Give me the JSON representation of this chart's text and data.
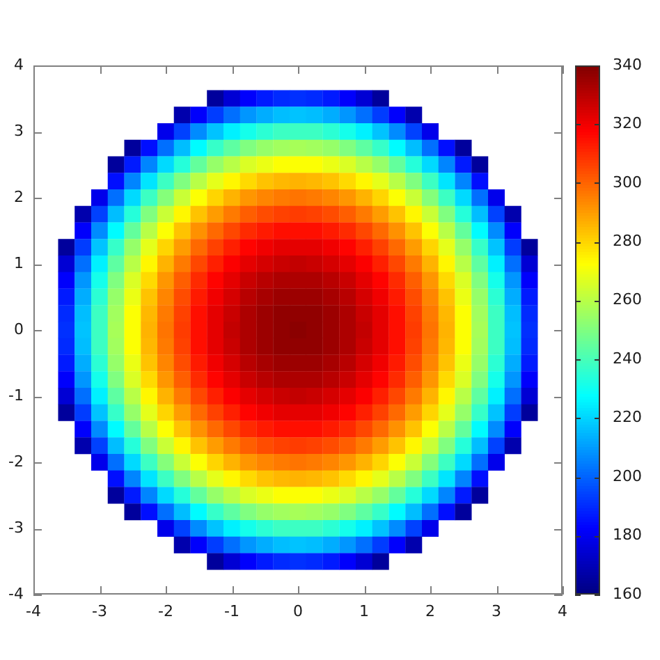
{
  "chart_data": {
    "type": "scatter",
    "marker": "square",
    "xlim": [
      -4,
      4
    ],
    "ylim": [
      -4,
      4
    ],
    "xticks": [
      -4,
      -3,
      -2,
      -1,
      0,
      1,
      2,
      3,
      4
    ],
    "yticks": [
      -4,
      -3,
      -2,
      -1,
      0,
      1,
      2,
      3,
      4
    ],
    "clim": [
      160,
      340
    ],
    "cticks": [
      160,
      180,
      200,
      220,
      240,
      260,
      280,
      300,
      320,
      340
    ],
    "x": [
      -1.25,
      -1,
      -0.75,
      -0.5,
      -0.25,
      0,
      0.25,
      0.5,
      0.75,
      1,
      1.25,
      -1.75,
      -1.5,
      -1.25,
      -1,
      -0.75,
      -0.5,
      -0.25,
      0,
      0.25,
      0.5,
      0.75,
      1,
      1.25,
      1.5,
      1.75,
      -2,
      -1.75,
      -1.5,
      -1.25,
      -1,
      -0.75,
      -0.5,
      -0.25,
      0,
      0.25,
      0.5,
      0.75,
      1,
      1.25,
      1.5,
      1.75,
      2,
      -2.5,
      -2.25,
      -2,
      -1.75,
      -1.5,
      -1.25,
      -1,
      -0.75,
      -0.5,
      -0.25,
      0,
      0.25,
      0.5,
      0.75,
      1,
      1.25,
      1.5,
      1.75,
      2,
      2.25,
      2.5,
      -2.75,
      -2.5,
      -2.25,
      -2,
      -1.75,
      -1.5,
      -1.25,
      -1,
      -0.75,
      -0.5,
      -0.25,
      0,
      0.25,
      0.5,
      0.75,
      1,
      1.25,
      1.5,
      1.75,
      2,
      2.25,
      2.5,
      2.75,
      -2.75,
      -2.5,
      -2.25,
      -2,
      -1.75,
      -1.5,
      -1.25,
      -1,
      -0.75,
      -0.5,
      -0.25,
      0,
      0.25,
      0.5,
      0.75,
      1,
      1.25,
      1.5,
      1.75,
      2,
      2.25,
      2.5,
      2.75,
      -3,
      -2.75,
      -2.5,
      -2.25,
      -2,
      -1.75,
      -1.5,
      -1.25,
      -1,
      -0.75,
      -0.5,
      -0.25,
      0,
      0.25,
      0.5,
      0.75,
      1,
      1.25,
      1.5,
      1.75,
      2,
      2.25,
      2.5,
      2.75,
      3,
      -3.25,
      -3,
      -2.75,
      -2.5,
      -2.25,
      -2,
      -1.75,
      -1.5,
      -1.25,
      -1,
      -0.75,
      -0.5,
      -0.25,
      0,
      0.25,
      0.5,
      0.75,
      1,
      1.25,
      1.5,
      1.75,
      2,
      2.25,
      2.5,
      2.75,
      3,
      3.25,
      -3.25,
      -3,
      -2.75,
      -2.5,
      -2.25,
      -2,
      -1.75,
      -1.5,
      -1.25,
      -1,
      -0.75,
      -0.5,
      -0.25,
      0,
      0.25,
      0.5,
      0.75,
      1,
      1.25,
      1.5,
      1.75,
      2,
      2.25,
      2.5,
      2.75,
      3,
      3.25,
      -3.5,
      -3.25,
      -3,
      -2.75,
      -2.5,
      -2.25,
      -2,
      -1.75,
      -1.5,
      -1.25,
      -1,
      -0.75,
      -0.5,
      -0.25,
      0,
      0.25,
      0.5,
      0.75,
      1,
      1.25,
      1.5,
      1.75,
      2,
      2.25,
      2.5,
      2.75,
      3,
      3.25,
      3.5,
      -3.5,
      -3.25,
      -3,
      -2.75,
      -2.5,
      -2.25,
      -2,
      -1.75,
      -1.5,
      -1.25,
      -1,
      -0.75,
      -0.5,
      -0.25,
      0,
      0.25,
      0.5,
      0.75,
      1,
      1.25,
      1.5,
      1.75,
      2,
      2.25,
      2.5,
      2.75,
      3,
      3.25,
      3.5,
      -3.5,
      -3.25,
      -3,
      -2.75,
      -2.5,
      -2.25,
      -2,
      -1.75,
      -1.5,
      -1.25,
      -1,
      -0.75,
      -0.5,
      -0.25,
      0,
      0.25,
      0.5,
      0.75,
      1,
      1.25,
      1.5,
      1.75,
      2,
      2.25,
      2.5,
      2.75,
      3,
      3.25,
      3.5,
      -3.5,
      -3.25,
      -3,
      -2.75,
      -2.5,
      -2.25,
      -2,
      -1.75,
      -1.5,
      -1.25,
      -1,
      -0.75,
      -0.5,
      -0.25,
      0,
      0.25,
      0.5,
      0.75,
      1,
      1.25,
      1.5,
      1.75,
      2,
      2.25,
      2.5,
      2.75,
      3,
      3.25,
      3.5,
      -3.5,
      -3.25,
      -3,
      -2.75,
      -2.5,
      -2.25,
      -2,
      -1.75,
      -1.5,
      -1.25,
      -1,
      -0.75,
      -0.5,
      -0.25,
      0,
      0.25,
      0.5,
      0.75,
      1,
      1.25,
      1.5,
      1.75,
      2,
      2.25,
      2.5,
      2.75,
      3,
      3.25,
      3.5,
      -3.5,
      -3.25,
      -3,
      -2.75,
      -2.5,
      -2.25,
      -2,
      -1.75,
      -1.5,
      -1.25,
      -1,
      -0.75,
      -0.5,
      -0.25,
      0,
      0.25,
      0.5,
      0.75,
      1,
      1.25,
      1.5,
      1.75,
      2,
      2.25,
      2.5,
      2.75,
      3,
      3.25,
      3.5,
      -3.5,
      -3.25,
      -3,
      -2.75,
      -2.5,
      -2.25,
      -2,
      -1.75,
      -1.5,
      -1.25,
      -1,
      -0.75,
      -0.5,
      -0.25,
      0,
      0.25,
      0.5,
      0.75,
      1,
      1.25,
      1.5,
      1.75,
      2,
      2.25,
      2.5,
      2.75,
      3,
      3.25,
      3.5,
      -3.5,
      -3.25,
      -3,
      -2.75,
      -2.5,
      -2.25,
      -2,
      -1.75,
      -1.5,
      -1.25,
      -1,
      -0.75,
      -0.5,
      -0.25,
      0,
      0.25,
      0.5,
      0.75,
      1,
      1.25,
      1.5,
      1.75,
      2,
      2.25,
      2.5,
      2.75,
      3,
      3.25,
      3.5,
      -3.5,
      -3.25,
      -3,
      -2.75,
      -2.5,
      -2.25,
      -2,
      -1.75,
      -1.5,
      -1.25,
      -1,
      -0.75,
      -0.5,
      -0.25,
      0,
      0.25,
      0.5,
      0.75,
      1,
      1.25,
      1.5,
      1.75,
      2,
      2.25,
      2.5,
      2.75,
      3,
      3.25,
      3.5,
      -3.5,
      -3.25,
      -3,
      -2.75,
      -2.5,
      -2.25,
      -2,
      -1.75,
      -1.5,
      -1.25,
      -1,
      -0.75,
      -0.5,
      -0.25,
      0,
      0.25,
      0.5,
      0.75,
      1,
      1.25,
      1.5,
      1.75,
      2,
      2.25,
      2.5,
      2.75,
      3,
      3.25,
      3.5,
      -3.5,
      -3.25,
      -3,
      -2.75,
      -2.5,
      -2.25,
      -2,
      -1.75,
      -1.5,
      -1.25,
      -1,
      -0.75,
      -0.5,
      -0.25,
      0,
      0.25,
      0.5,
      0.75,
      1,
      1.25,
      1.5,
      1.75,
      2,
      2.25,
      2.5,
      2.75,
      3,
      3.25,
      3.5,
      -3.25,
      -3,
      -2.75,
      -2.5,
      -2.25,
      -2,
      -1.75,
      -1.5,
      -1.25,
      -1,
      -0.75,
      -0.5,
      -0.25,
      0,
      0.25,
      0.5,
      0.75,
      1,
      1.25,
      1.5,
      1.75,
      2,
      2.25,
      2.5,
      2.75,
      3,
      3.25,
      -3.25,
      -3,
      -2.75,
      -2.5,
      -2.25,
      -2,
      -1.75,
      -1.5,
      -1.25,
      -1,
      -0.75,
      -0.5,
      -0.25,
      0,
      0.25,
      0.5,
      0.75,
      1,
      1.25,
      1.5,
      1.75,
      2,
      2.25,
      2.5,
      2.75,
      3,
      3.25,
      -3,
      -2.75,
      -2.5,
      -2.25,
      -2,
      -1.75,
      -1.5,
      -1.25,
      -1,
      -0.75,
      -0.5,
      -0.25,
      0,
      0.25,
      0.5,
      0.75,
      1,
      1.25,
      1.5,
      1.75,
      2,
      2.25,
      2.5,
      2.75,
      3,
      -2.75,
      -2.5,
      -2.25,
      -2,
      -1.75,
      -1.5,
      -1.25,
      -1,
      -0.75,
      -0.5,
      -0.25,
      0,
      0.25,
      0.5,
      0.75,
      1,
      1.25,
      1.5,
      1.75,
      2,
      2.25,
      2.5,
      2.75,
      -2.75,
      -2.5,
      -2.25,
      -2,
      -1.75,
      -1.5,
      -1.25,
      -1,
      -0.75,
      -0.5,
      -0.25,
      0,
      0.25,
      0.5,
      0.75,
      1,
      1.25,
      1.5,
      1.75,
      2,
      2.25,
      2.5,
      2.75,
      -2.5,
      -2.25,
      -2,
      -1.75,
      -1.5,
      -1.25,
      -1,
      -0.75,
      -0.5,
      -0.25,
      0,
      0.25,
      0.5,
      0.75,
      1,
      1.25,
      1.5,
      1.75,
      2,
      2.25,
      2.5,
      -2,
      -1.75,
      -1.5,
      -1.25,
      -1,
      -0.75,
      -0.5,
      -0.25,
      0,
      0.25,
      0.5,
      0.75,
      1,
      1.25,
      1.5,
      1.75,
      2,
      -1.75,
      -1.5,
      -1.25,
      -1,
      -0.75,
      -0.5,
      -0.25,
      0,
      0.25,
      0.5,
      0.75,
      1,
      1.25,
      1.5,
      1.75,
      -1.25,
      -1,
      -0.75,
      -0.5,
      -0.25,
      0,
      0.25,
      0.5,
      0.75,
      1,
      1.25
    ],
    "values": [
      3.5,
      3.5,
      3.5,
      3.5,
      3.5,
      3.5,
      3.5,
      3.5,
      3.5,
      3.5,
      3.5,
      3.25,
      3.25,
      3.25,
      3.25,
      3.25,
      3.25,
      3.25,
      3.25,
      3.25,
      3.25,
      3.25,
      3.25,
      3.25,
      3.25,
      3.25,
      3,
      3,
      3,
      3,
      3,
      3,
      3,
      3,
      3,
      3,
      3,
      3,
      3,
      3,
      3,
      3,
      3,
      2.75,
      2.75,
      2.75,
      2.75,
      2.75,
      2.75,
      2.75,
      2.75,
      2.75,
      2.75,
      2.75,
      2.75,
      2.75,
      2.75,
      2.75,
      2.75,
      2.75,
      2.75,
      2.75,
      2.75,
      2.75,
      2.5,
      2.5,
      2.5,
      2.5,
      2.5,
      2.5,
      2.5,
      2.5,
      2.5,
      2.5,
      2.5,
      2.5,
      2.5,
      2.5,
      2.5,
      2.5,
      2.5,
      2.5,
      2.5,
      2.5,
      2.5,
      2.5,
      2.5,
      2.25,
      2.25,
      2.25,
      2.25,
      2.25,
      2.25,
      2.25,
      2.25,
      2.25,
      2.25,
      2.25,
      2.25,
      2.25,
      2.25,
      2.25,
      2.25,
      2.25,
      2.25,
      2.25,
      2.25,
      2.25,
      2.25,
      2.25,
      2,
      2,
      2,
      2,
      2,
      2,
      2,
      2,
      2,
      2,
      2,
      2,
      2,
      2,
      2,
      2,
      2,
      2,
      2,
      2,
      2,
      2,
      2,
      2,
      2,
      1.75,
      1.75,
      1.75,
      1.75,
      1.75,
      1.75,
      1.75,
      1.75,
      1.75,
      1.75,
      1.75,
      1.75,
      1.75,
      1.75,
      1.75,
      1.75,
      1.75,
      1.75,
      1.75,
      1.75,
      1.75,
      1.75,
      1.75,
      1.75,
      1.75,
      1.75,
      1.75,
      1.5,
      1.5,
      1.5,
      1.5,
      1.5,
      1.5,
      1.5,
      1.5,
      1.5,
      1.5,
      1.5,
      1.5,
      1.5,
      1.5,
      1.5,
      1.5,
      1.5,
      1.5,
      1.5,
      1.5,
      1.5,
      1.5,
      1.5,
      1.5,
      1.5,
      1.5,
      1.5,
      1.25,
      1.25,
      1.25,
      1.25,
      1.25,
      1.25,
      1.25,
      1.25,
      1.25,
      1.25,
      1.25,
      1.25,
      1.25,
      1.25,
      1.25,
      1.25,
      1.25,
      1.25,
      1.25,
      1.25,
      1.25,
      1.25,
      1.25,
      1.25,
      1.25,
      1.25,
      1.25,
      1.25,
      1.25,
      1,
      1,
      1,
      1,
      1,
      1,
      1,
      1,
      1,
      1,
      1,
      1,
      1,
      1,
      1,
      1,
      1,
      1,
      1,
      1,
      1,
      1,
      1,
      1,
      1,
      1,
      1,
      1,
      1,
      0.75,
      0.75,
      0.75,
      0.75,
      0.75,
      0.75,
      0.75,
      0.75,
      0.75,
      0.75,
      0.75,
      0.75,
      0.75,
      0.75,
      0.75,
      0.75,
      0.75,
      0.75,
      0.75,
      0.75,
      0.75,
      0.75,
      0.75,
      0.75,
      0.75,
      0.75,
      0.75,
      0.75,
      0.75,
      0.5,
      0.5,
      0.5,
      0.5,
      0.5,
      0.5,
      0.5,
      0.5,
      0.5,
      0.5,
      0.5,
      0.5,
      0.5,
      0.5,
      0.5,
      0.5,
      0.5,
      0.5,
      0.5,
      0.5,
      0.5,
      0.5,
      0.5,
      0.5,
      0.5,
      0.5,
      0.5,
      0.5,
      0.5,
      0.25,
      0.25,
      0.25,
      0.25,
      0.25,
      0.25,
      0.25,
      0.25,
      0.25,
      0.25,
      0.25,
      0.25,
      0.25,
      0.25,
      0.25,
      0.25,
      0.25,
      0.25,
      0.25,
      0.25,
      0.25,
      0.25,
      0.25,
      0.25,
      0.25,
      0.25,
      0.25,
      0.25,
      0.25,
      0,
      0,
      0,
      0,
      0,
      0,
      0,
      0,
      0,
      0,
      0,
      0,
      0,
      0,
      0,
      0,
      0,
      0,
      0,
      0,
      0,
      0,
      0,
      0,
      0,
      0,
      0,
      0,
      0,
      -0.25,
      -0.25,
      -0.25,
      -0.25,
      -0.25,
      -0.25,
      -0.25,
      -0.25,
      -0.25,
      -0.25,
      -0.25,
      -0.25,
      -0.25,
      -0.25,
      -0.25,
      -0.25,
      -0.25,
      -0.25,
      -0.25,
      -0.25,
      -0.25,
      -0.25,
      -0.25,
      -0.25,
      -0.25,
      -0.25,
      -0.25,
      -0.25,
      -0.25,
      -0.5,
      -0.5,
      -0.5,
      -0.5,
      -0.5,
      -0.5,
      -0.5,
      -0.5,
      -0.5,
      -0.5,
      -0.5,
      -0.5,
      -0.5,
      -0.5,
      -0.5,
      -0.5,
      -0.5,
      -0.5,
      -0.5,
      -0.5,
      -0.5,
      -0.5,
      -0.5,
      -0.5,
      -0.5,
      -0.5,
      -0.5,
      -0.5,
      -0.5,
      -0.75,
      -0.75,
      -0.75,
      -0.75,
      -0.75,
      -0.75,
      -0.75,
      -0.75,
      -0.75,
      -0.75,
      -0.75,
      -0.75,
      -0.75,
      -0.75,
      -0.75,
      -0.75,
      -0.75,
      -0.75,
      -0.75,
      -0.75,
      -0.75,
      -0.75,
      -0.75,
      -0.75,
      -0.75,
      -0.75,
      -0.75,
      -0.75,
      -0.75,
      -1,
      -1,
      -1,
      -1,
      -1,
      -1,
      -1,
      -1,
      -1,
      -1,
      -1,
      -1,
      -1,
      -1,
      -1,
      -1,
      -1,
      -1,
      -1,
      -1,
      -1,
      -1,
      -1,
      -1,
      -1,
      -1,
      -1,
      -1,
      -1,
      -1.25,
      -1.25,
      -1.25,
      -1.25,
      -1.25,
      -1.25,
      -1.25,
      -1.25,
      -1.25,
      -1.25,
      -1.25,
      -1.25,
      -1.25,
      -1.25,
      -1.25,
      -1.25,
      -1.25,
      -1.25,
      -1.25,
      -1.25,
      -1.25,
      -1.25,
      -1.25,
      -1.25,
      -1.25,
      -1.25,
      -1.25,
      -1.25,
      -1.25,
      -1.5,
      -1.5,
      -1.5,
      -1.5,
      -1.5,
      -1.5,
      -1.5,
      -1.5,
      -1.5,
      -1.5,
      -1.5,
      -1.5,
      -1.5,
      -1.5,
      -1.5,
      -1.5,
      -1.5,
      -1.5,
      -1.5,
      -1.5,
      -1.5,
      -1.5,
      -1.5,
      -1.5,
      -1.5,
      -1.5,
      -1.5,
      -1.75,
      -1.75,
      -1.75,
      -1.75,
      -1.75,
      -1.75,
      -1.75,
      -1.75,
      -1.75,
      -1.75,
      -1.75,
      -1.75,
      -1.75,
      -1.75,
      -1.75,
      -1.75,
      -1.75,
      -1.75,
      -1.75,
      -1.75,
      -1.75,
      -1.75,
      -1.75,
      -1.75,
      -1.75,
      -1.75,
      -1.75,
      -2,
      -2,
      -2,
      -2,
      -2,
      -2,
      -2,
      -2,
      -2,
      -2,
      -2,
      -2,
      -2,
      -2,
      -2,
      -2,
      -2,
      -2,
      -2,
      -2,
      -2,
      -2,
      -2,
      -2,
      -2,
      -2.25,
      -2.25,
      -2.25,
      -2.25,
      -2.25,
      -2.25,
      -2.25,
      -2.25,
      -2.25,
      -2.25,
      -2.25,
      -2.25,
      -2.25,
      -2.25,
      -2.25,
      -2.25,
      -2.25,
      -2.25,
      -2.25,
      -2.25,
      -2.25,
      -2.25,
      -2.25,
      -2.5,
      -2.5,
      -2.5,
      -2.5,
      -2.5,
      -2.5,
      -2.5,
      -2.5,
      -2.5,
      -2.5,
      -2.5,
      -2.5,
      -2.5,
      -2.5,
      -2.5,
      -2.5,
      -2.5,
      -2.5,
      -2.5,
      -2.5,
      -2.5,
      -2.5,
      -2.5,
      -2.75,
      -2.75,
      -2.75,
      -2.75,
      -2.75,
      -2.75,
      -2.75,
      -2.75,
      -2.75,
      -2.75,
      -2.75,
      -2.75,
      -2.75,
      -2.75,
      -2.75,
      -2.75,
      -2.75,
      -2.75,
      -2.75,
      -2.75,
      -2.75,
      -3,
      -3,
      -3,
      -3,
      -3,
      -3,
      -3,
      -3,
      -3,
      -3,
      -3,
      -3,
      -3,
      -3,
      -3,
      -3,
      -3,
      -3.25,
      -3.25,
      -3.25,
      -3.25,
      -3.25,
      -3.25,
      -3.25,
      -3.25,
      -3.25,
      -3.25,
      -3.25,
      -3.25,
      -3.25,
      -3.25,
      -3.25,
      -3.5,
      -3.5,
      -3.5,
      -3.5,
      -3.5,
      -3.5,
      -3.5,
      -3.5,
      -3.5,
      -3.5,
      -3.5
    ],
    "cvalues": [
      165,
      175,
      182,
      187,
      190,
      191,
      190,
      187,
      182,
      175,
      165,
      168,
      182,
      193,
      202,
      209,
      213,
      216,
      217,
      216,
      213,
      209,
      202,
      193,
      182,
      168,
      179,
      194,
      207,
      217,
      225,
      231,
      235,
      238,
      238,
      238,
      235,
      231,
      225,
      217,
      207,
      194,
      179,
      165,
      185,
      202,
      216,
      227,
      237,
      244,
      250,
      254,
      256,
      257,
      256,
      254,
      250,
      244,
      237,
      227,
      216,
      202,
      185,
      165,
      165,
      187,
      206,
      221,
      234,
      245,
      254,
      260,
      266,
      269,
      272,
      272,
      272,
      269,
      266,
      260,
      254,
      245,
      234,
      221,
      206,
      187,
      165,
      185,
      206,
      223,
      238,
      250,
      260,
      268,
      274,
      279,
      283,
      285,
      286,
      285,
      283,
      279,
      274,
      268,
      260,
      250,
      238,
      223,
      206,
      185,
      179,
      202,
      221,
      238,
      251,
      263,
      272,
      280,
      286,
      291,
      294,
      296,
      297,
      296,
      294,
      291,
      286,
      280,
      272,
      263,
      251,
      238,
      221,
      202,
      179,
      168,
      194,
      216,
      234,
      250,
      263,
      274,
      283,
      290,
      296,
      301,
      304,
      306,
      307,
      306,
      304,
      301,
      296,
      290,
      283,
      274,
      263,
      250,
      234,
      216,
      194,
      168,
      182,
      207,
      227,
      245,
      260,
      272,
      283,
      292,
      299,
      305,
      310,
      313,
      315,
      315,
      315,
      313,
      310,
      305,
      299,
      292,
      283,
      272,
      260,
      245,
      227,
      207,
      182,
      165,
      193,
      217,
      237,
      254,
      268,
      280,
      290,
      299,
      306,
      312,
      317,
      320,
      322,
      322,
      322,
      320,
      317,
      312,
      306,
      299,
      290,
      280,
      268,
      254,
      237,
      217,
      193,
      165,
      175,
      202,
      225,
      244,
      260,
      274,
      286,
      296,
      305,
      312,
      318,
      322,
      325,
      327,
      328,
      327,
      325,
      322,
      318,
      312,
      305,
      296,
      286,
      274,
      260,
      244,
      225,
      202,
      175,
      182,
      209,
      231,
      250,
      266,
      279,
      291,
      301,
      310,
      317,
      322,
      327,
      330,
      332,
      332,
      332,
      330,
      327,
      322,
      317,
      310,
      301,
      291,
      279,
      266,
      250,
      231,
      209,
      182,
      187,
      213,
      235,
      254,
      269,
      283,
      294,
      304,
      313,
      320,
      325,
      330,
      333,
      335,
      335,
      335,
      333,
      330,
      325,
      320,
      313,
      304,
      294,
      283,
      269,
      254,
      235,
      213,
      187,
      190,
      216,
      238,
      256,
      272,
      285,
      296,
      306,
      315,
      322,
      327,
      332,
      335,
      337,
      337,
      337,
      335,
      332,
      327,
      322,
      315,
      306,
      296,
      285,
      272,
      256,
      238,
      216,
      190,
      191,
      217,
      238,
      257,
      272,
      286,
      297,
      307,
      315,
      322,
      328,
      332,
      335,
      337,
      338,
      337,
      335,
      332,
      328,
      322,
      315,
      307,
      297,
      286,
      272,
      257,
      238,
      217,
      191,
      190,
      216,
      238,
      256,
      272,
      285,
      296,
      306,
      315,
      322,
      327,
      332,
      335,
      337,
      337,
      337,
      335,
      332,
      327,
      322,
      315,
      306,
      296,
      285,
      272,
      256,
      238,
      216,
      190,
      187,
      213,
      235,
      254,
      269,
      283,
      294,
      304,
      313,
      320,
      325,
      330,
      333,
      335,
      335,
      335,
      333,
      330,
      325,
      320,
      313,
      304,
      294,
      283,
      269,
      254,
      235,
      213,
      187,
      182,
      209,
      231,
      250,
      266,
      279,
      291,
      301,
      310,
      317,
      322,
      327,
      330,
      332,
      332,
      332,
      330,
      327,
      322,
      317,
      310,
      301,
      291,
      279,
      266,
      250,
      231,
      209,
      182,
      175,
      202,
      225,
      244,
      260,
      274,
      286,
      296,
      305,
      312,
      318,
      322,
      325,
      327,
      328,
      327,
      325,
      322,
      318,
      312,
      305,
      296,
      286,
      274,
      260,
      244,
      225,
      202,
      175,
      165,
      193,
      217,
      237,
      254,
      268,
      280,
      290,
      299,
      306,
      312,
      317,
      320,
      322,
      322,
      322,
      320,
      317,
      312,
      306,
      299,
      290,
      280,
      268,
      254,
      237,
      217,
      193,
      165,
      182,
      207,
      227,
      245,
      260,
      272,
      283,
      292,
      299,
      305,
      310,
      313,
      315,
      315,
      315,
      313,
      310,
      305,
      299,
      292,
      283,
      272,
      260,
      245,
      227,
      207,
      182,
      168,
      194,
      216,
      234,
      250,
      263,
      274,
      283,
      290,
      296,
      301,
      304,
      306,
      307,
      306,
      304,
      301,
      296,
      290,
      283,
      274,
      263,
      250,
      234,
      216,
      194,
      168,
      179,
      202,
      221,
      238,
      251,
      263,
      272,
      280,
      286,
      291,
      294,
      296,
      297,
      296,
      294,
      291,
      286,
      280,
      272,
      263,
      251,
      238,
      221,
      202,
      179,
      185,
      206,
      223,
      238,
      250,
      260,
      268,
      274,
      279,
      283,
      285,
      286,
      285,
      283,
      279,
      274,
      268,
      260,
      250,
      238,
      223,
      206,
      185,
      165,
      187,
      206,
      221,
      234,
      245,
      254,
      260,
      266,
      269,
      272,
      272,
      272,
      269,
      266,
      260,
      254,
      245,
      234,
      221,
      206,
      187,
      165,
      165,
      185,
      202,
      216,
      227,
      237,
      244,
      250,
      254,
      256,
      257,
      256,
      254,
      250,
      244,
      237,
      227,
      216,
      202,
      185,
      165,
      179,
      194,
      207,
      217,
      225,
      231,
      235,
      238,
      238,
      238,
      235,
      231,
      225,
      217,
      207,
      194,
      179,
      168,
      182,
      193,
      202,
      209,
      213,
      216,
      217,
      216,
      213,
      209,
      202,
      193,
      182,
      168,
      165,
      175,
      182,
      187,
      190,
      191,
      190,
      187,
      182,
      175,
      165
    ]
  }
}
